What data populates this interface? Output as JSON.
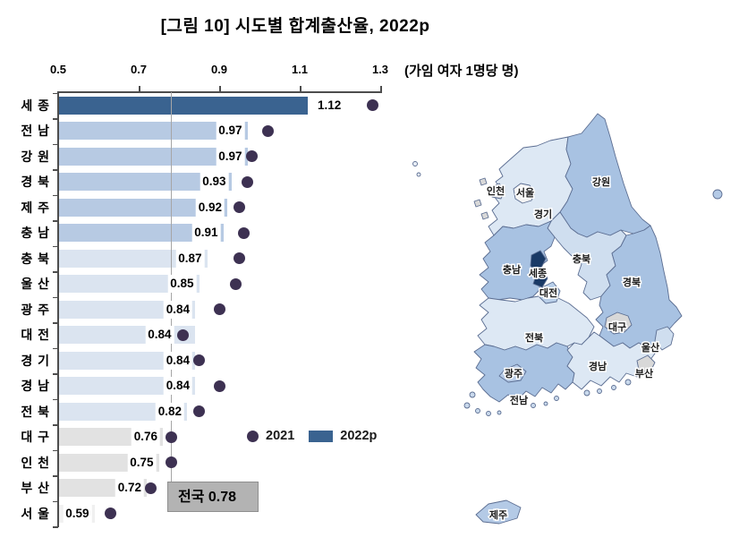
{
  "unit_note": "(가임 여자 1명당 명)",
  "x_axis": {
    "ticks": [
      "0.5",
      "0.7",
      "0.9",
      "1.1",
      "1.3"
    ]
  },
  "legend": {
    "year_2021": "2021",
    "year_2022": "2022p"
  },
  "national_box": {
    "text": "전국 0.78"
  },
  "chart_data": {
    "type": "bar",
    "orientation": "horizontal",
    "title": "[그림 10] 시도별 합계출산율, 2022p",
    "unit": "가임 여자 1명당 명",
    "categories": [
      "세 종",
      "전 남",
      "강 원",
      "경 북",
      "제 주",
      "충 남",
      "충 북",
      "울 산",
      "광 주",
      "대 전",
      "경 기",
      "경 남",
      "전 북",
      "대 구",
      "인 천",
      "부 산",
      "서 울"
    ],
    "series": [
      {
        "name": "2022p",
        "values": [
          1.12,
          0.97,
          0.97,
          0.93,
          0.92,
          0.91,
          0.87,
          0.85,
          0.84,
          0.84,
          0.84,
          0.84,
          0.82,
          0.76,
          0.75,
          0.72,
          0.59
        ]
      },
      {
        "name": "2021",
        "values": [
          1.28,
          1.02,
          0.98,
          0.97,
          0.95,
          0.96,
          0.95,
          0.94,
          0.9,
          0.81,
          0.85,
          0.9,
          0.85,
          0.78,
          0.78,
          0.73,
          0.63
        ]
      }
    ],
    "xlim": [
      0.5,
      1.3
    ],
    "national_average": 0.78,
    "legend_position": "bottom-right"
  },
  "colors": {
    "bar_highlight": "#3a6390",
    "bar_high": "#b7cae3",
    "bar_mid": "#dbe4f0",
    "bar_low": "#e2e2e2",
    "bar_lowest": "#f0f0f0",
    "dot": "#3d3152",
    "national_line": "#a6a6a6",
    "national_box_bg": "#b3b3b3"
  },
  "bar_color_keys": [
    "bar_highlight",
    "bar_high",
    "bar_high",
    "bar_high",
    "bar_high",
    "bar_high",
    "bar_mid",
    "bar_mid",
    "bar_mid",
    "bar_mid",
    "bar_mid",
    "bar_mid",
    "bar_mid",
    "bar_low",
    "bar_low",
    "bar_low",
    "bar_lowest"
  ],
  "map": {
    "regions": [
      {
        "name": "경기",
        "color": "#dde8f4"
      },
      {
        "name": "강원",
        "color": "#a8c2e2"
      },
      {
        "name": "충북",
        "color": "#cfdeef"
      },
      {
        "name": "충남",
        "color": "#a8c2e2"
      },
      {
        "name": "경북",
        "color": "#a8c2e2"
      },
      {
        "name": "전북",
        "color": "#dde8f4"
      },
      {
        "name": "전남",
        "color": "#a8c2e2"
      },
      {
        "name": "경남",
        "color": "#dde8f4"
      },
      {
        "name": "인천",
        "color": "#d8d8d8"
      },
      {
        "name": "서울",
        "color": "#f4f4f4"
      },
      {
        "name": "세종",
        "color": "#1a3a66"
      },
      {
        "name": "대전",
        "color": "#b9cfe9"
      },
      {
        "name": "대구",
        "color": "#d8d8d8"
      },
      {
        "name": "울산",
        "color": "#cfdeef"
      },
      {
        "name": "부산",
        "color": "#d8d8d8"
      },
      {
        "name": "광주",
        "color": "#b7cbe7"
      },
      {
        "name": "제주",
        "color": "#b4cae6"
      }
    ]
  }
}
